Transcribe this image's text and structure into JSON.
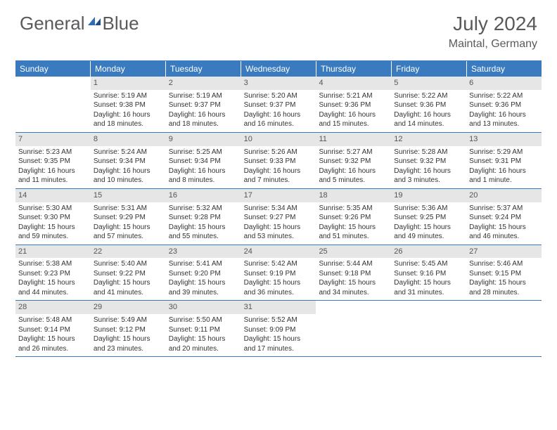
{
  "logo": {
    "text1": "General",
    "text2": "Blue"
  },
  "title": "July 2024",
  "location": "Maintal, Germany",
  "colors": {
    "header_bg": "#3a7bbf",
    "header_fg": "#ffffff",
    "daynum_bg": "#e6e6e6",
    "text": "#333333",
    "border": "#3a7bbf",
    "logo_gray": "#5a5a5a",
    "logo_blue": "#2e6db3"
  },
  "weekdays": [
    "Sunday",
    "Monday",
    "Tuesday",
    "Wednesday",
    "Thursday",
    "Friday",
    "Saturday"
  ],
  "weeks": [
    [
      {
        "n": "",
        "sr": "",
        "ss": "",
        "dl": ""
      },
      {
        "n": "1",
        "sr": "Sunrise: 5:19 AM",
        "ss": "Sunset: 9:38 PM",
        "dl": "Daylight: 16 hours and 18 minutes."
      },
      {
        "n": "2",
        "sr": "Sunrise: 5:19 AM",
        "ss": "Sunset: 9:37 PM",
        "dl": "Daylight: 16 hours and 18 minutes."
      },
      {
        "n": "3",
        "sr": "Sunrise: 5:20 AM",
        "ss": "Sunset: 9:37 PM",
        "dl": "Daylight: 16 hours and 16 minutes."
      },
      {
        "n": "4",
        "sr": "Sunrise: 5:21 AM",
        "ss": "Sunset: 9:36 PM",
        "dl": "Daylight: 16 hours and 15 minutes."
      },
      {
        "n": "5",
        "sr": "Sunrise: 5:22 AM",
        "ss": "Sunset: 9:36 PM",
        "dl": "Daylight: 16 hours and 14 minutes."
      },
      {
        "n": "6",
        "sr": "Sunrise: 5:22 AM",
        "ss": "Sunset: 9:36 PM",
        "dl": "Daylight: 16 hours and 13 minutes."
      }
    ],
    [
      {
        "n": "7",
        "sr": "Sunrise: 5:23 AM",
        "ss": "Sunset: 9:35 PM",
        "dl": "Daylight: 16 hours and 11 minutes."
      },
      {
        "n": "8",
        "sr": "Sunrise: 5:24 AM",
        "ss": "Sunset: 9:34 PM",
        "dl": "Daylight: 16 hours and 10 minutes."
      },
      {
        "n": "9",
        "sr": "Sunrise: 5:25 AM",
        "ss": "Sunset: 9:34 PM",
        "dl": "Daylight: 16 hours and 8 minutes."
      },
      {
        "n": "10",
        "sr": "Sunrise: 5:26 AM",
        "ss": "Sunset: 9:33 PM",
        "dl": "Daylight: 16 hours and 7 minutes."
      },
      {
        "n": "11",
        "sr": "Sunrise: 5:27 AM",
        "ss": "Sunset: 9:32 PM",
        "dl": "Daylight: 16 hours and 5 minutes."
      },
      {
        "n": "12",
        "sr": "Sunrise: 5:28 AM",
        "ss": "Sunset: 9:32 PM",
        "dl": "Daylight: 16 hours and 3 minutes."
      },
      {
        "n": "13",
        "sr": "Sunrise: 5:29 AM",
        "ss": "Sunset: 9:31 PM",
        "dl": "Daylight: 16 hours and 1 minute."
      }
    ],
    [
      {
        "n": "14",
        "sr": "Sunrise: 5:30 AM",
        "ss": "Sunset: 9:30 PM",
        "dl": "Daylight: 15 hours and 59 minutes."
      },
      {
        "n": "15",
        "sr": "Sunrise: 5:31 AM",
        "ss": "Sunset: 9:29 PM",
        "dl": "Daylight: 15 hours and 57 minutes."
      },
      {
        "n": "16",
        "sr": "Sunrise: 5:32 AM",
        "ss": "Sunset: 9:28 PM",
        "dl": "Daylight: 15 hours and 55 minutes."
      },
      {
        "n": "17",
        "sr": "Sunrise: 5:34 AM",
        "ss": "Sunset: 9:27 PM",
        "dl": "Daylight: 15 hours and 53 minutes."
      },
      {
        "n": "18",
        "sr": "Sunrise: 5:35 AM",
        "ss": "Sunset: 9:26 PM",
        "dl": "Daylight: 15 hours and 51 minutes."
      },
      {
        "n": "19",
        "sr": "Sunrise: 5:36 AM",
        "ss": "Sunset: 9:25 PM",
        "dl": "Daylight: 15 hours and 49 minutes."
      },
      {
        "n": "20",
        "sr": "Sunrise: 5:37 AM",
        "ss": "Sunset: 9:24 PM",
        "dl": "Daylight: 15 hours and 46 minutes."
      }
    ],
    [
      {
        "n": "21",
        "sr": "Sunrise: 5:38 AM",
        "ss": "Sunset: 9:23 PM",
        "dl": "Daylight: 15 hours and 44 minutes."
      },
      {
        "n": "22",
        "sr": "Sunrise: 5:40 AM",
        "ss": "Sunset: 9:22 PM",
        "dl": "Daylight: 15 hours and 41 minutes."
      },
      {
        "n": "23",
        "sr": "Sunrise: 5:41 AM",
        "ss": "Sunset: 9:20 PM",
        "dl": "Daylight: 15 hours and 39 minutes."
      },
      {
        "n": "24",
        "sr": "Sunrise: 5:42 AM",
        "ss": "Sunset: 9:19 PM",
        "dl": "Daylight: 15 hours and 36 minutes."
      },
      {
        "n": "25",
        "sr": "Sunrise: 5:44 AM",
        "ss": "Sunset: 9:18 PM",
        "dl": "Daylight: 15 hours and 34 minutes."
      },
      {
        "n": "26",
        "sr": "Sunrise: 5:45 AM",
        "ss": "Sunset: 9:16 PM",
        "dl": "Daylight: 15 hours and 31 minutes."
      },
      {
        "n": "27",
        "sr": "Sunrise: 5:46 AM",
        "ss": "Sunset: 9:15 PM",
        "dl": "Daylight: 15 hours and 28 minutes."
      }
    ],
    [
      {
        "n": "28",
        "sr": "Sunrise: 5:48 AM",
        "ss": "Sunset: 9:14 PM",
        "dl": "Daylight: 15 hours and 26 minutes."
      },
      {
        "n": "29",
        "sr": "Sunrise: 5:49 AM",
        "ss": "Sunset: 9:12 PM",
        "dl": "Daylight: 15 hours and 23 minutes."
      },
      {
        "n": "30",
        "sr": "Sunrise: 5:50 AM",
        "ss": "Sunset: 9:11 PM",
        "dl": "Daylight: 15 hours and 20 minutes."
      },
      {
        "n": "31",
        "sr": "Sunrise: 5:52 AM",
        "ss": "Sunset: 9:09 PM",
        "dl": "Daylight: 15 hours and 17 minutes."
      },
      {
        "n": "",
        "sr": "",
        "ss": "",
        "dl": ""
      },
      {
        "n": "",
        "sr": "",
        "ss": "",
        "dl": ""
      },
      {
        "n": "",
        "sr": "",
        "ss": "",
        "dl": ""
      }
    ]
  ]
}
